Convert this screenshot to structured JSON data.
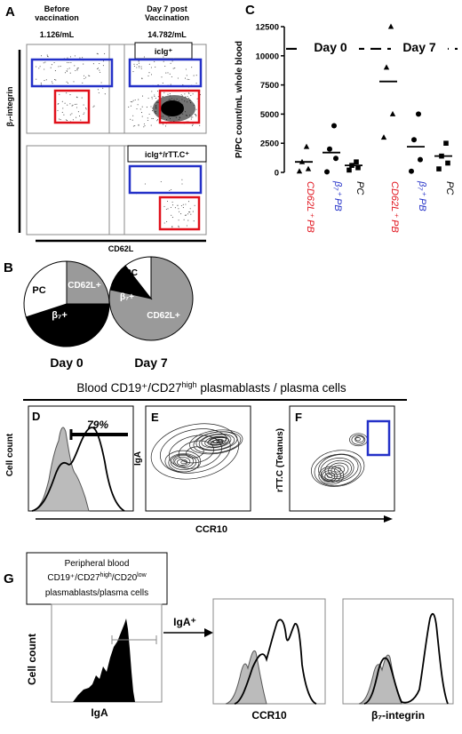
{
  "panelA": {
    "label": "A",
    "col1_title_line1": "Before",
    "col1_title_line2": "vaccination",
    "col2_title_line1": "Day 7 post",
    "col2_title_line2": "Vaccination",
    "col1_count": "1.126/mL",
    "col2_count": "14.782/mL",
    "row1_gate_label": "iclg⁺",
    "row2_gate_label": "iclg⁺/rTT.C⁺",
    "y_axis_label": "β₇-integrin",
    "x_axis_label": "CD62L"
  },
  "panelB": {
    "label": "B",
    "day0_label": "Day 0",
    "day7_label": "Day 7",
    "slice_pc": "PC",
    "slice_cd62l": "CD62L+",
    "slice_b7": "β₇+",
    "colors": {
      "pc": "#ffffff",
      "cd62l": "#9a9a9a",
      "b7": "#000000"
    }
  },
  "panelC": {
    "label": "C",
    "y_axis_label": "P/PC count/mL whole blood",
    "day0_label": "Day 0",
    "day7_label": "Day 7",
    "categories": [
      "CD62L⁺ PB",
      "β₇⁺ PB",
      "PC",
      "CD62L⁺ PB",
      "β₇⁺ PB",
      "PC"
    ],
    "category_colors": [
      "#e0101a",
      "#2431c8",
      "#000000",
      "#e0101a",
      "#2431c8",
      "#000000"
    ]
  },
  "chart_data": {
    "type": "scatter",
    "ylim": [
      0,
      12500
    ],
    "yticks": [
      0,
      2500,
      5000,
      7500,
      10000,
      12500
    ],
    "day_divider_y": 10600,
    "groups": [
      {
        "marker": "triangle",
        "points": [
          100,
          300,
          900,
          2200
        ],
        "median": 900
      },
      {
        "marker": "circle",
        "points": [
          50,
          1200,
          2000,
          4000
        ],
        "median": 1700
      },
      {
        "marker": "square",
        "points": [
          200,
          400,
          600,
          900
        ],
        "median": 600
      },
      {
        "marker": "triangle",
        "points": [
          3000,
          5000,
          9000,
          12500
        ],
        "median": 7800
      },
      {
        "marker": "circle",
        "points": [
          100,
          1100,
          2800,
          5000
        ],
        "median": 2200
      },
      {
        "marker": "square",
        "points": [
          300,
          800,
          1400,
          2500
        ],
        "median": 1400
      }
    ]
  },
  "blood_title_main": "Blood CD19⁺/CD27",
  "blood_title_sup": "high",
  "blood_title_rest": " plasmablasts / plasma cells",
  "panelD": {
    "label": "D",
    "percent": "79%",
    "y_axis_label": "Cell count"
  },
  "panelE": {
    "label": "E",
    "y_axis_label": "IgA"
  },
  "panelF": {
    "label": "F",
    "y_axis_label": "rTT.C (Tetanus)"
  },
  "ccr10_axis_label": "CCR10",
  "panelG": {
    "label": "G",
    "box_line1": "Peripheral blood",
    "box_line2_a": "CD19⁺/CD27",
    "box_line2_sup1": "high",
    "box_line2_b": "/CD20",
    "box_line2_sup2": "low",
    "box_line3": "plasmablasts/plasma cells",
    "y_axis_label": "Cell count",
    "x1_label": "IgA",
    "arrow_label": "IgA⁺",
    "x2_label": "CCR10",
    "x3_label": "β₇-integrin"
  }
}
